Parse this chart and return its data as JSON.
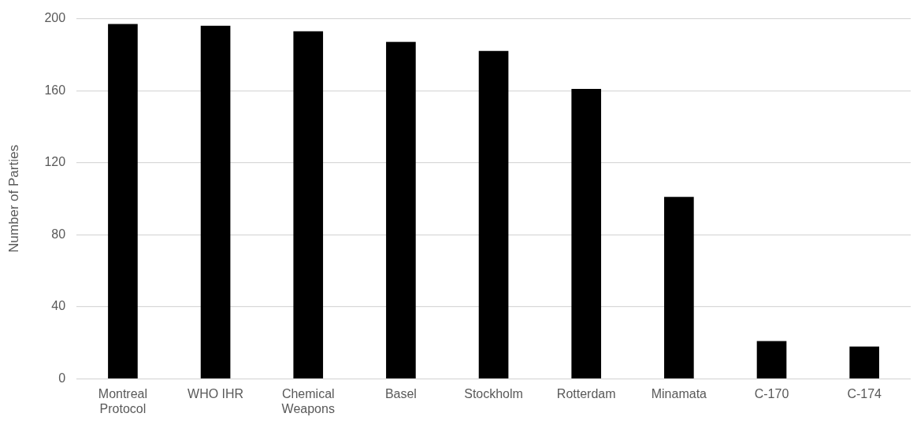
{
  "chart_data": {
    "type": "bar",
    "ylabel": "Number of Parties",
    "categories": [
      "Montreal Protocol",
      "WHO IHR",
      "Chemical Weapons",
      "Basel",
      "Stockholm",
      "Rotterdam",
      "Minamata",
      "C-170",
      "C-174"
    ],
    "values": [
      197,
      196,
      193,
      187,
      182,
      161,
      101,
      21,
      18
    ],
    "color": "#000000",
    "ylim": [
      0,
      200
    ],
    "yticks": [
      0,
      40,
      80,
      120,
      160,
      200
    ],
    "grid": "y",
    "legend": false
  }
}
